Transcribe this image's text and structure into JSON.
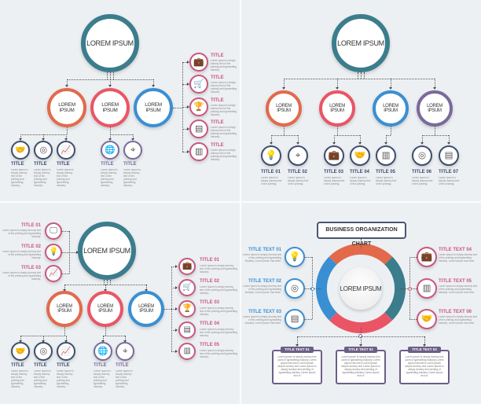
{
  "colors": {
    "teal": "#3b7d8c",
    "orange": "#e26a4b",
    "red": "#ea5565",
    "blue": "#3a8fd2",
    "purple": "#7a6a9b",
    "navy": "#3d4e6d",
    "pink": "#c9577c",
    "box_purple": "#6b5f86"
  },
  "panel1": {
    "main": "LOREM IPSUM",
    "level2": [
      "LOREM IPSUM",
      "LOREM IPSUM",
      "LOREM IPSUM"
    ],
    "bottom": [
      {
        "title": "TITLE",
        "text": "Lorem Ipsum is simply dummy text of the printing and typesetting industry.",
        "icon": "handshake-icon"
      },
      {
        "title": "TITLE",
        "text": "Lorem Ipsum is simply dummy text of the printing and typesetting industry.",
        "icon": "compass-icon"
      },
      {
        "title": "TITLE",
        "text": "Lorem Ipsum is simply dummy text of the printing and typesetting industry.",
        "icon": "chart-icon"
      },
      {
        "title": "TITLE",
        "text": "Lorem Ipsum is simply dummy text of the printing and typesetting industry.",
        "icon": "globe-icon"
      },
      {
        "title": "TITLE",
        "text": "Lorem Ipsum is simply dummy text of the printing and typesetting industry.",
        "icon": "location-pin-icon"
      }
    ],
    "right": [
      {
        "title": "TITLE",
        "text": "Lorem Ipsum is simply dummy text of the printing and typesetting industry.",
        "icon": "briefcase-icon"
      },
      {
        "title": "TITLE",
        "text": "Lorem Ipsum is simply dummy text of the printing and typesetting industry.",
        "icon": "cart-icon"
      },
      {
        "title": "TITLE",
        "text": "Lorem Ipsum is simply dummy text of the printing and typesetting industry.",
        "icon": "trophy-icon"
      },
      {
        "title": "TITLE",
        "text": "Lorem Ipsum is simply dummy text of the printing and typesetting industry.",
        "icon": "calendar-icon"
      },
      {
        "title": "TITLE",
        "text": "Lorem Ipsum is simply dummy text of the printing and typesetting industry.",
        "icon": "document-icon"
      }
    ]
  },
  "panel2": {
    "main": "LOREM IPSUM",
    "level2": [
      "LOREM IPSUM",
      "LOREM IPSUM",
      "LOREM IPSUM",
      "LOREM IPSUM"
    ],
    "bottom": [
      {
        "title": "TITLE 01",
        "text": "Lorem Ipsum is simply dummy text of the printing.",
        "icon": "lightbulb-icon"
      },
      {
        "title": "TITLE 02",
        "text": "Lorem Ipsum is simply dummy text of the printing.",
        "icon": "location-pin-icon"
      },
      {
        "title": "TITLE 03",
        "text": "Lorem Ipsum is simply dummy text of the printing.",
        "icon": "briefcase-icon"
      },
      {
        "title": "TITLE 04",
        "text": "Lorem Ipsum is simply dummy text of the printing.",
        "icon": "handshake-icon"
      },
      {
        "title": "TITLE 05",
        "text": "Lorem Ipsum is simply dummy text of the printing.",
        "icon": "document-icon"
      },
      {
        "title": "TITLE 06",
        "text": "Lorem Ipsum is simply dummy text of the printing.",
        "icon": "compass-icon"
      },
      {
        "title": "TITLE 07",
        "text": "Lorem Ipsum is simply dummy text of the printing.",
        "icon": "calendar-icon"
      }
    ]
  },
  "panel3": {
    "main": "LOREM IPSUM",
    "level2": [
      "LOREM IPSUM",
      "LOREM IPSUM",
      "LOREM IPSUM"
    ],
    "left": [
      {
        "title": "TITLE 01",
        "text": "Lorem Ipsum is simply dummy text of the printing and typesetting industry.",
        "icon": "monitor-icon"
      },
      {
        "title": "TITLE 02",
        "text": "Lorem Ipsum is simply dummy text of the printing and typesetting industry.",
        "icon": "lightbulb-icon"
      },
      {
        "title": "TITLE 03",
        "text": "Lorem Ipsum is simply dummy text of the printing and typesetting industry.",
        "icon": "chart-icon"
      }
    ],
    "bottom": [
      {
        "title": "TITLE",
        "text": "Lorem Ipsum is simply dummy text of the printing and typesetting industry.",
        "icon": "handshake-icon"
      },
      {
        "title": "TITLE",
        "text": "Lorem Ipsum is simply dummy text of the printing and typesetting industry.",
        "icon": "compass-icon"
      },
      {
        "title": "TITLE",
        "text": "Lorem Ipsum is simply dummy text of the printing and typesetting industry.",
        "icon": "chart-icon"
      },
      {
        "title": "TITLE",
        "text": "Lorem Ipsum is simply dummy text of the printing and typesetting industry.",
        "icon": "globe-icon"
      },
      {
        "title": "TITLE",
        "text": "Lorem Ipsum is simply dummy text of the printing and typesetting industry.",
        "icon": "location-pin-icon"
      }
    ],
    "right": [
      {
        "title": "TITLE 01",
        "text": "Lorem Ipsum is simply dummy text of the printing and typesetting industry.",
        "icon": "briefcase-icon"
      },
      {
        "title": "TITLE 02",
        "text": "Lorem Ipsum is simply dummy text of the printing and typesetting industry.",
        "icon": "cart-icon"
      },
      {
        "title": "TITLE 03",
        "text": "Lorem Ipsum is simply dummy text of the printing and typesetting industry.",
        "icon": "trophy-icon"
      },
      {
        "title": "TITLE 04",
        "text": "Lorem Ipsum is simply dummy text of the printing and typesetting industry.",
        "icon": "calendar-icon"
      },
      {
        "title": "TITLE 05",
        "text": "Lorem Ipsum is simply dummy text of the printing and typesetting industry.",
        "icon": "document-icon"
      }
    ]
  },
  "panel4": {
    "title": "BUSINESS ORGANIZATION CHART",
    "center": "LOREM IPSUM",
    "left": [
      {
        "title": "TITLE TEXT 01",
        "text": "Lorem Ipsum is simply dummy text of the printing and typesetting industry. Lorem Ipsum has been.",
        "icon": "lightbulb-icon"
      },
      {
        "title": "TITLE TEXT 02",
        "text": "Lorem Ipsum is simply dummy text of the printing and typesetting industry. Lorem Ipsum has been.",
        "icon": "compass-icon"
      },
      {
        "title": "TITLE TEXT 03",
        "text": "Lorem Ipsum is simply dummy text of the printing and typesetting industry. Lorem Ipsum has been.",
        "icon": "calendar-icon"
      }
    ],
    "right": [
      {
        "title": "TITLE TEXT 04",
        "text": "Lorem Ipsum is simply dummy text of the printing and typesetting industry. Lorem Ipsum has been.",
        "icon": "briefcase-icon"
      },
      {
        "title": "TITLE TEXT 05",
        "text": "Lorem Ipsum is simply dummy text of the printing and typesetting industry. Lorem Ipsum has been.",
        "icon": "document-icon"
      },
      {
        "title": "TITLE TEXT 06",
        "text": "Lorem Ipsum is simply dummy text of the printing and typesetting industry. Lorem Ipsum has been.",
        "icon": "handshake-icon"
      }
    ],
    "boxes": [
      {
        "title": "TITLE TEXT 01",
        "text": "Lorem Ipsum is simply dummy text point of typesetting industry Lorem Ipsum has been Lorem Ipsum simple dummy text Lorem Ipsum is simply dummy text printing of typesetting industry Lorem ipsum text of"
      },
      {
        "title": "TITLE TEXT 02",
        "text": "Lorem Ipsum is simply dummy text point of typesetting industry Lorem Ipsum has been Lorem Ipsum simple dummy text Lorem Ipsum is simply dummy text printing of typesetting industry Lorem ipsum text of"
      },
      {
        "title": "TITLE TEXT 03",
        "text": "Lorem Ipsum is simply dummy text point of typesetting industry Lorem Ipsum has been Lorem Ipsum simple dummy text Lorem Ipsum is simply dummy text printing of typesetting industry Lorem ipsum text of"
      }
    ]
  }
}
